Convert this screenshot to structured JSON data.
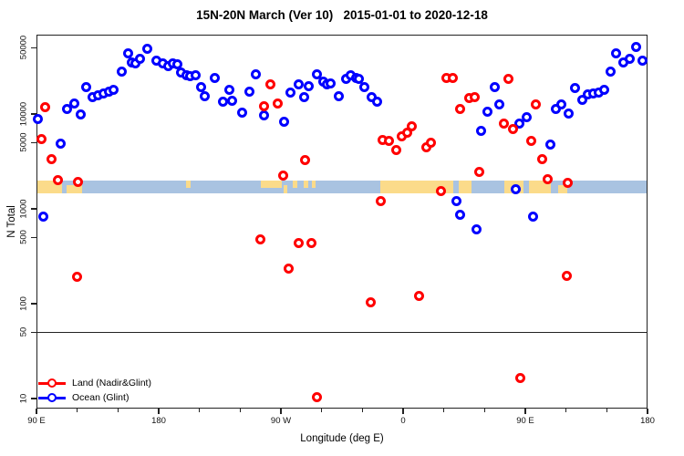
{
  "chart_data": {
    "type": "scatter",
    "title": "15N-20N March (Ver 10)   2015-01-01 to 2020-12-18",
    "xlabel": "Longitude (deg E)",
    "ylabel": "N Total",
    "x_range": [
      90,
      540
    ],
    "y_scale": "log10",
    "y_ticks": [
      {
        "v": 10,
        "label": "10"
      },
      {
        "v": 50,
        "label": "50"
      },
      {
        "v": 100,
        "label": "100"
      },
      {
        "v": 500,
        "label": "500"
      },
      {
        "v": 1000,
        "label": "1000"
      },
      {
        "v": 5000,
        "label": "5000"
      },
      {
        "v": 10000,
        "label": "10000"
      },
      {
        "v": 50000,
        "label": "50000"
      }
    ],
    "x_major_ticks": [
      {
        "lon": 90,
        "label": "90 E"
      },
      {
        "lon": 180,
        "label": "180"
      },
      {
        "lon": 270,
        "label": "90 W"
      },
      {
        "lon": 360,
        "label": "0"
      },
      {
        "lon": 450,
        "label": "90 E"
      },
      {
        "lon": 540,
        "label": "180"
      }
    ],
    "x_minor_step_deg": 30,
    "ref_line_n": 50,
    "legend_position": "bottom-left",
    "grid": false,
    "map_band": {
      "n_top": 2000,
      "n_bottom": 1450,
      "ocean_color": "#A9C3E1",
      "land_color": "#FBDB8A",
      "land_segments": [
        {
          "from": 91,
          "to": 108.5,
          "v": "full"
        },
        {
          "from": 112,
          "to": 123.5,
          "v": "bottom"
        },
        {
          "from": 200,
          "to": 203.5,
          "v": "top"
        },
        {
          "from": 255,
          "to": 271,
          "v": "top"
        },
        {
          "from": 272,
          "to": 274.5,
          "v": "bottom"
        },
        {
          "from": 279,
          "to": 282,
          "v": "top"
        },
        {
          "from": 287,
          "to": 290,
          "v": "top"
        },
        {
          "from": 293,
          "to": 295.5,
          "v": "top"
        },
        {
          "from": 343.5,
          "to": 397,
          "v": "full"
        },
        {
          "from": 401,
          "to": 410.5,
          "v": "full"
        },
        {
          "from": 434.5,
          "to": 448.5,
          "v": "full"
        },
        {
          "from": 452.5,
          "to": 469,
          "v": "full"
        },
        {
          "from": 474,
          "to": 481,
          "v": "bottom"
        }
      ]
    },
    "series": [
      {
        "name": "Land (Nadir&Glint)",
        "color": "#FF0000",
        "points": [
          [
            96.7,
            11900
          ],
          [
            93.4,
            5380
          ],
          [
            101.2,
            3360
          ],
          [
            105.7,
            2020
          ],
          [
            120.7,
            1940
          ],
          [
            119.8,
            193
          ],
          [
            257.8,
            12000
          ],
          [
            267.8,
            12800
          ],
          [
            262,
            20700
          ],
          [
            271.8,
            2235
          ],
          [
            287.5,
            3300
          ],
          [
            344.8,
            5350
          ],
          [
            349.8,
            5150
          ],
          [
            354.7,
            4130
          ],
          [
            358.7,
            5750
          ],
          [
            362.7,
            6400
          ],
          [
            366.5,
            7430
          ],
          [
            377,
            4500
          ],
          [
            380.6,
            4930
          ],
          [
            343.5,
            1220
          ],
          [
            387.6,
            1540
          ],
          [
            254.6,
            480
          ],
          [
            283,
            435
          ],
          [
            292.2,
            440
          ],
          [
            275.8,
            236
          ],
          [
            336.3,
            103
          ],
          [
            371.6,
            121
          ],
          [
            296.4,
            10.3
          ],
          [
            391.6,
            23900
          ],
          [
            396.8,
            24200
          ],
          [
            437.9,
            23500
          ],
          [
            408.4,
            14800
          ],
          [
            412.4,
            15200
          ],
          [
            402.1,
            11200
          ],
          [
            434.1,
            8000
          ],
          [
            440.8,
            7000
          ],
          [
            457.6,
            12500
          ],
          [
            454.2,
            5150
          ],
          [
            462.1,
            3330
          ],
          [
            416.2,
            2460
          ],
          [
            466.6,
            2040
          ],
          [
            481.1,
            1900
          ],
          [
            480.7,
            196
          ],
          [
            446,
            16.3
          ]
        ]
      },
      {
        "name": "Ocean (Glint)",
        "color": "#0000FF",
        "points": [
          [
            91.3,
            8950
          ],
          [
            107.9,
            4850
          ],
          [
            112.4,
            11200
          ],
          [
            118,
            12800
          ],
          [
            122.4,
            10000
          ],
          [
            126.9,
            19100
          ],
          [
            131.4,
            15000
          ],
          [
            135.5,
            15900
          ],
          [
            139.2,
            16400
          ],
          [
            143.1,
            17200
          ],
          [
            146.6,
            18100
          ],
          [
            152.7,
            28100
          ],
          [
            157.2,
            43800
          ],
          [
            160.5,
            35200
          ],
          [
            162.8,
            34400
          ],
          [
            166.1,
            38400
          ],
          [
            171.7,
            48200
          ],
          [
            178.4,
            36600
          ],
          [
            182.9,
            33900
          ],
          [
            186.9,
            32200
          ],
          [
            190.7,
            34400
          ],
          [
            193.6,
            33100
          ],
          [
            196.3,
            27100
          ],
          [
            200.3,
            25700
          ],
          [
            203.5,
            24800
          ],
          [
            207.5,
            25700
          ],
          [
            210.9,
            19100
          ],
          [
            214.2,
            15300
          ],
          [
            221,
            24200
          ],
          [
            227.2,
            13600
          ],
          [
            232.2,
            18100
          ],
          [
            234.4,
            13900
          ],
          [
            241.2,
            10400
          ],
          [
            94.9,
            824
          ],
          [
            251.7,
            26100
          ],
          [
            246.8,
            17300
          ],
          [
            257.8,
            9600
          ],
          [
            272.2,
            8300
          ],
          [
            277.1,
            16800
          ],
          [
            282.8,
            20700
          ],
          [
            286.8,
            15200
          ],
          [
            290.8,
            19700
          ],
          [
            296.4,
            26100
          ],
          [
            300.9,
            21800
          ],
          [
            303.8,
            20700
          ],
          [
            306.7,
            21000
          ],
          [
            312.8,
            15300
          ],
          [
            318.3,
            23500
          ],
          [
            321.7,
            25500
          ],
          [
            325.1,
            24200
          ],
          [
            327.3,
            23500
          ],
          [
            331.3,
            19100
          ],
          [
            337,
            15000
          ],
          [
            340.7,
            13600
          ],
          [
            427.4,
            19400
          ],
          [
            422.3,
            10600
          ],
          [
            430.7,
            12500
          ],
          [
            417.3,
            6680
          ],
          [
            445.3,
            7840
          ],
          [
            451.3,
            9340
          ],
          [
            468.8,
            4790
          ],
          [
            472.8,
            11200
          ],
          [
            476.6,
            12500
          ],
          [
            481.8,
            10150
          ],
          [
            486.7,
            18700
          ],
          [
            492.3,
            14200
          ],
          [
            496.1,
            16200
          ],
          [
            500.2,
            16600
          ],
          [
            504.2,
            16800
          ],
          [
            508,
            18100
          ],
          [
            513.1,
            28100
          ],
          [
            517,
            43800
          ],
          [
            522.1,
            35200
          ],
          [
            526.6,
            37800
          ],
          [
            531.5,
            50600
          ],
          [
            536,
            36600
          ],
          [
            443.1,
            1610
          ],
          [
            399.2,
            1210
          ],
          [
            401.7,
            875
          ],
          [
            414.4,
            605
          ],
          [
            455.4,
            829
          ]
        ]
      }
    ]
  }
}
